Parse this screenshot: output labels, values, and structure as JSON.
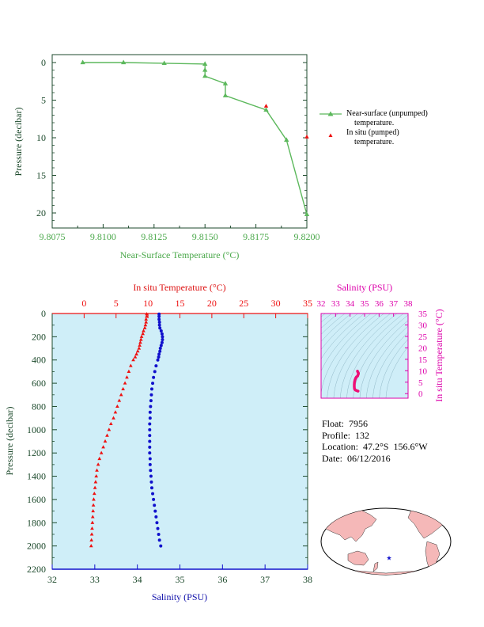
{
  "colors": {
    "near_surface": "#5cb85c",
    "in_situ": "#ee1111",
    "salinity": "#1010cc",
    "magenta": "#dd00aa",
    "plot_bg": "#cfeef8",
    "axis_green": "#4aa84a",
    "axis_dark": "#1d4a2c"
  },
  "info": {
    "float": "Float:  7956",
    "profile": "Profile:  132",
    "location": "Location:  47.2°S  156.6°W",
    "date": "Date:  06/12/2016"
  },
  "legend": {
    "near_surface_line1": "Near-surface (unpumped)",
    "near_surface_line2": "temperature.",
    "in_situ_line1": "In situ (pumped)",
    "in_situ_line2": "temperature."
  },
  "chart_data": [
    {
      "type": "line",
      "xlabel": "Near-Surface Temperature (°C)",
      "ylabel": "Pressure (decibar)",
      "xlim": [
        9.8075,
        9.82
      ],
      "ylim": [
        0,
        22
      ],
      "y_inverted": true,
      "xticks": [
        "9.8075",
        "9.8100",
        "9.8125",
        "9.8150",
        "9.8175",
        "9.8200"
      ],
      "yticks": [
        "0",
        "5",
        "10",
        "15",
        "20"
      ],
      "series": [
        {
          "name": "Near-surface (unpumped) temperature.",
          "x": [
            9.809,
            9.811,
            9.813,
            9.815,
            9.815,
            9.815,
            9.816,
            9.816,
            9.818,
            9.819,
            9.82
          ],
          "y": [
            0.0,
            0.0,
            0.1,
            0.2,
            1.0,
            1.8,
            2.8,
            4.4,
            6.3,
            10.3,
            20.2
          ]
        },
        {
          "name": "In situ (pumped) temperature.",
          "x": [
            9.818,
            9.82
          ],
          "y": [
            5.8,
            9.9
          ]
        }
      ]
    },
    {
      "type": "scatter",
      "top_xlabel": "In situ Temperature (°C)",
      "bottom_xlabel": "Salinity (PSU)",
      "ylabel": "Pressure (decibar)",
      "temp_xlim": [
        -5,
        35
      ],
      "sal_xlim": [
        32,
        38
      ],
      "ylim": [
        0,
        2200
      ],
      "y_inverted": true,
      "temp_ticks": [
        "0",
        "5",
        "10",
        "15",
        "20",
        "25",
        "30",
        "35"
      ],
      "sal_ticks": [
        "32",
        "33",
        "34",
        "35",
        "36",
        "37",
        "38"
      ],
      "yticks": [
        "0",
        "200",
        "400",
        "600",
        "800",
        "1000",
        "1200",
        "1400",
        "1600",
        "1800",
        "2000",
        "2200"
      ],
      "temperature": {
        "pressure": [
          5,
          25,
          50,
          75,
          100,
          125,
          150,
          175,
          200,
          225,
          250,
          275,
          300,
          325,
          350,
          375,
          400,
          450,
          500,
          550,
          600,
          650,
          700,
          750,
          800,
          850,
          900,
          950,
          1000,
          1050,
          1100,
          1150,
          1200,
          1250,
          1300,
          1350,
          1400,
          1450,
          1500,
          1550,
          1600,
          1650,
          1700,
          1750,
          1800,
          1850,
          1900,
          1950,
          2000
        ],
        "values": [
          9.8,
          9.8,
          9.7,
          9.7,
          9.6,
          9.5,
          9.3,
          9.2,
          9.0,
          8.9,
          8.8,
          8.7,
          8.6,
          8.4,
          8.2,
          8.0,
          7.7,
          7.3,
          7.0,
          6.7,
          6.4,
          6.1,
          5.8,
          5.5,
          5.2,
          4.9,
          4.6,
          4.2,
          3.9,
          3.6,
          3.3,
          3.0,
          2.7,
          2.4,
          2.2,
          2.0,
          1.9,
          1.8,
          1.7,
          1.6,
          1.5,
          1.45,
          1.4,
          1.35,
          1.3,
          1.25,
          1.2,
          1.15,
          1.1
        ]
      },
      "salinity": {
        "pressure": [
          5,
          25,
          50,
          75,
          100,
          125,
          150,
          175,
          200,
          225,
          250,
          275,
          300,
          325,
          350,
          375,
          400,
          450,
          500,
          550,
          600,
          650,
          700,
          750,
          800,
          850,
          900,
          950,
          1000,
          1050,
          1100,
          1150,
          1200,
          1250,
          1300,
          1350,
          1400,
          1450,
          1500,
          1550,
          1600,
          1650,
          1700,
          1750,
          1800,
          1850,
          1900,
          1950,
          2000
        ],
        "values": [
          34.51,
          34.51,
          34.51,
          34.52,
          34.52,
          34.53,
          34.56,
          34.58,
          34.59,
          34.59,
          34.58,
          34.56,
          34.54,
          34.53,
          34.51,
          34.5,
          34.48,
          34.44,
          34.41,
          34.38,
          34.36,
          34.34,
          34.33,
          34.32,
          34.31,
          34.3,
          34.3,
          34.29,
          34.29,
          34.29,
          34.29,
          34.29,
          34.29,
          34.3,
          34.3,
          34.31,
          34.32,
          34.33,
          34.34,
          34.36,
          34.38,
          34.4,
          34.42,
          34.44,
          34.46,
          34.48,
          34.5,
          34.52,
          34.55
        ]
      }
    },
    {
      "type": "scatter",
      "top_xlabel": "Salinity (PSU)",
      "right_ylabel": "In situ Temperature (°C)",
      "sal_xlim": [
        32,
        38
      ],
      "temp_ylim": [
        -2,
        35
      ],
      "xticks": [
        "32",
        "33",
        "34",
        "35",
        "36",
        "37",
        "38"
      ],
      "yticks": [
        "0",
        "5",
        "10",
        "15",
        "20",
        "25",
        "30",
        "35"
      ],
      "ts_points": {
        "salinity": [
          34.51,
          34.58,
          34.52,
          34.44,
          34.38,
          34.33,
          34.3,
          34.29,
          34.29,
          34.3,
          34.32,
          34.36,
          34.42,
          34.5,
          34.55
        ],
        "temperature": [
          9.8,
          8.8,
          7.7,
          7.3,
          6.7,
          5.8,
          4.9,
          3.9,
          3.0,
          2.2,
          1.9,
          1.6,
          1.4,
          1.2,
          1.1
        ]
      }
    }
  ],
  "map": {
    "float_marker_icon": "star-icon"
  }
}
